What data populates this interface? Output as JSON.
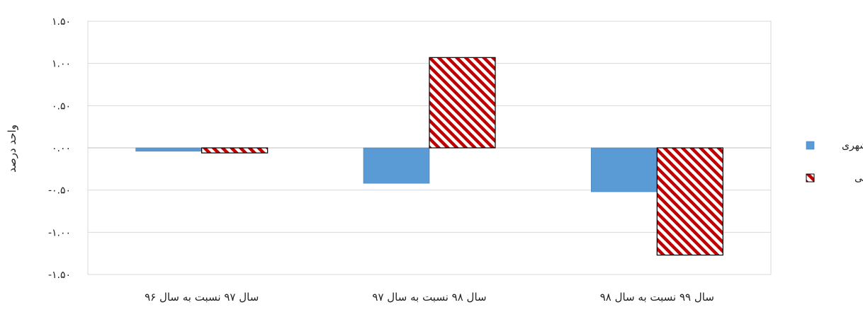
{
  "chart_data": {
    "type": "bar",
    "categories": [
      "سال ۹۷ نسبت به سال ۹۶",
      "سال ۹۸ نسبت به سال ۹۷",
      "سال ۹۹ نسبت به سال ۹۸"
    ],
    "series": [
      {
        "name": "شهری",
        "values": [
          -0.04,
          -0.42,
          -0.52
        ],
        "color": "#5b9bd5",
        "pattern": "solid"
      },
      {
        "name": "روستایی",
        "values": [
          -0.06,
          1.07,
          -1.27
        ],
        "color": "#c00000",
        "pattern": "diagonal-stripes"
      }
    ],
    "ylabel": "واحد درصد",
    "xlabel": "",
    "ylim": [
      -1.5,
      1.5
    ],
    "yticks": [
      1.5,
      1.0,
      0.5,
      0.0,
      -0.5,
      -1.0,
      -1.5
    ],
    "ytick_labels": [
      "۱.۵۰",
      "۱.۰۰",
      "۰.۵۰",
      "۰.۰۰",
      "-۰.۵۰",
      "-۱.۰۰",
      "-۱.۵۰"
    ],
    "grid": true,
    "legend_position": "right"
  }
}
